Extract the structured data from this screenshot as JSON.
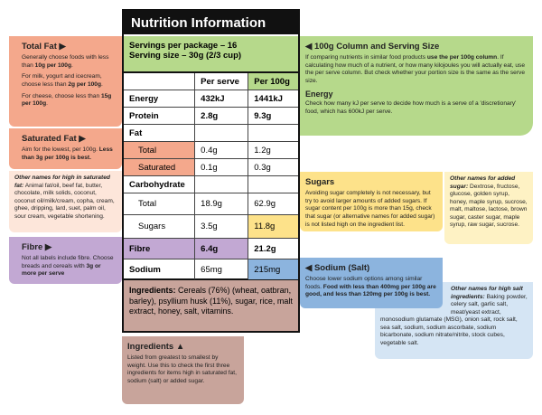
{
  "label": {
    "title": "Nutrition Information",
    "servings": "Servings per package – 16",
    "serving_size": "Serving size – 30g (2/3 cup)",
    "columns": [
      "Per serve",
      "Per 100g"
    ],
    "rows": [
      [
        "Energy",
        "432kJ",
        "1441kJ"
      ],
      [
        "Protein",
        "2.8g",
        "9.3g"
      ],
      [
        "Fat"
      ],
      [
        "Total",
        "0.4g",
        "1.2g"
      ],
      [
        "Saturated",
        "0.1g",
        "0.3g"
      ],
      [
        "Carbohydrate"
      ],
      [
        "Total",
        "18.9g",
        "62.9g"
      ],
      [
        "Sugars",
        "3.5g",
        "11.8g"
      ],
      [
        "Fibre",
        "6.4g",
        "21.2g"
      ],
      [
        "Sodium",
        "65mg",
        "215mg"
      ]
    ],
    "ingredients": {
      "heading": "Ingredients:",
      "text": " Cereals (76%) (wheat, oatbran, barley), psyllium husk (11%), sugar, rice, malt extract, honey, salt, vitamins."
    }
  },
  "panels": [
    {
      "id": "total-fat",
      "title": "Total Fat ▶",
      "paragraphs": [
        [
          {
            "t": "Generally choose foods with less than "
          },
          {
            "b": "10g per 100g"
          },
          {
            "t": "."
          }
        ],
        [
          {
            "t": "For milk, yogurt and icecream, choose less than "
          },
          {
            "b": "2g per 100g"
          },
          {
            "t": "."
          }
        ],
        [
          {
            "t": "For cheese, choose less than "
          },
          {
            "b": "15g per 100g"
          },
          {
            "t": "."
          }
        ]
      ]
    },
    {
      "id": "sat-fat",
      "title": "Saturated Fat ▶",
      "paragraphs": [
        [
          {
            "t": "Aim for the lowest, per 100g. "
          },
          {
            "b": "Less than 3g per 100g is best."
          }
        ]
      ]
    },
    {
      "id": "sat-names",
      "paragraphs": [
        [
          {
            "i": "Other names for high in saturated fat:"
          },
          {
            "t": " Animal fat/oil, beef fat, butter, chocolate, milk solids, coconut, coconut oil/milk/cream, copha, cream, ghee, dripping, lard, suet, palm oil, sour cream, vegetable shortening."
          }
        ]
      ]
    },
    {
      "id": "fibre",
      "title": "Fibre ▶",
      "paragraphs": [
        [
          {
            "t": "Not all labels include fibre. Choose breads and cereals with "
          },
          {
            "b": "3g or more per serve"
          }
        ]
      ]
    },
    {
      "id": "column",
      "title": "◀ 100g Column and Serving Size",
      "paragraphs": [
        [
          {
            "t": "If comparing nutrients in similar food products "
          },
          {
            "b": "use the per 100g column"
          },
          {
            "t": ". If calculating how much of a nutrient, or how many kilojoules you will actually eat, use the per serve column. But check whether your portion size is the same as the serve size."
          }
        ]
      ],
      "subtitle": "Energy",
      "paragraphs2": [
        [
          {
            "t": "Check how many kJ per serve to decide how much is a serve of a 'discretionary' food, which has 600kJ per serve."
          }
        ]
      ]
    },
    {
      "id": "sugars",
      "title": "Sugars",
      "paragraphs": [
        [
          {
            "t": "Avoiding sugar completely is not necessary, but try to avoid larger amounts of added sugars. If sugar content per 100g is more than 15g, check that sugar (or alternative names for added sugar) is not listed high on the ingredient list."
          }
        ]
      ]
    },
    {
      "id": "sugar-names",
      "paragraphs": [
        [
          {
            "i": "Other names for added sugar:"
          },
          {
            "t": " Dextrose, fructose, glucose, golden syrup, honey, maple syrup, sucrose, malt, maltose, lactose, brown sugar, caster sugar, maple syrup, raw sugar, sucrose."
          }
        ]
      ]
    },
    {
      "id": "salt-names",
      "paragraphs": [
        [
          {
            "i": "Other names for high salt ingredients:"
          },
          {
            "t": " Baking powder, celery salt, garlic salt, meat/yeast extract, monosodium glutamate (MSG), onion salt, rock salt, sea salt, sodium, sodium ascorbate, sodium bicarbonate, sodium nitrate/nitrite, stock cubes, vegetable salt."
          }
        ]
      ]
    },
    {
      "id": "sodium",
      "title": "◀ Sodium (Salt)",
      "paragraphs": [
        [
          {
            "t": "Choose lower sodium options among similar foods. "
          },
          {
            "b": "Food with less than 400mg per 100g are good, and less than 120mg per 100g is best."
          }
        ]
      ]
    },
    {
      "id": "ingr-info",
      "title": "Ingredients ▲",
      "paragraphs": [
        [
          {
            "t": "Listed from greatest to smallest by weight. Use this to check the first three ingredients for items high in saturated fat, sodium (salt) or added sugar."
          }
        ]
      ]
    }
  ]
}
